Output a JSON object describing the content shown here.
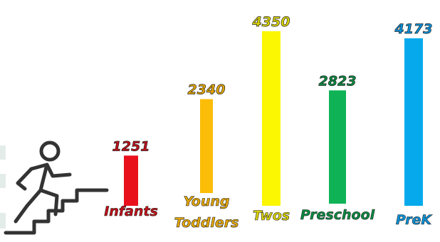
{
  "chart_data": {
    "type": "bar",
    "title": "",
    "xlabel": "",
    "ylabel": "",
    "ylim": [
      0,
      4350
    ],
    "grid": false,
    "legend": "none",
    "categories": [
      {
        "lines": [
          "Infants"
        ],
        "value": 1251,
        "value_label": "1251",
        "color": "#e8111b",
        "label_color": "#c01018"
      },
      {
        "lines": [
          "Young",
          "Toddlers"
        ],
        "value": 2340,
        "value_label": "2340",
        "color": "#fbbd07",
        "label_color": "#e4a600"
      },
      {
        "lines": [
          "Twos"
        ],
        "value": 4350,
        "value_label": "4350",
        "color": "#fbf602",
        "label_color": "#d8d100"
      },
      {
        "lines": [
          "Preschool"
        ],
        "value": 2823,
        "value_label": "2823",
        "color": "#0fb355",
        "label_color": "#0a8a40"
      },
      {
        "lines": [
          "PreK"
        ],
        "value": 4173,
        "value_label": "4173",
        "color": "#06aaec",
        "label_color": "#0a90d6"
      }
    ]
  },
  "decoration": {
    "icon": "person-climbing-stairs-icon",
    "icon_color": "#333333"
  }
}
